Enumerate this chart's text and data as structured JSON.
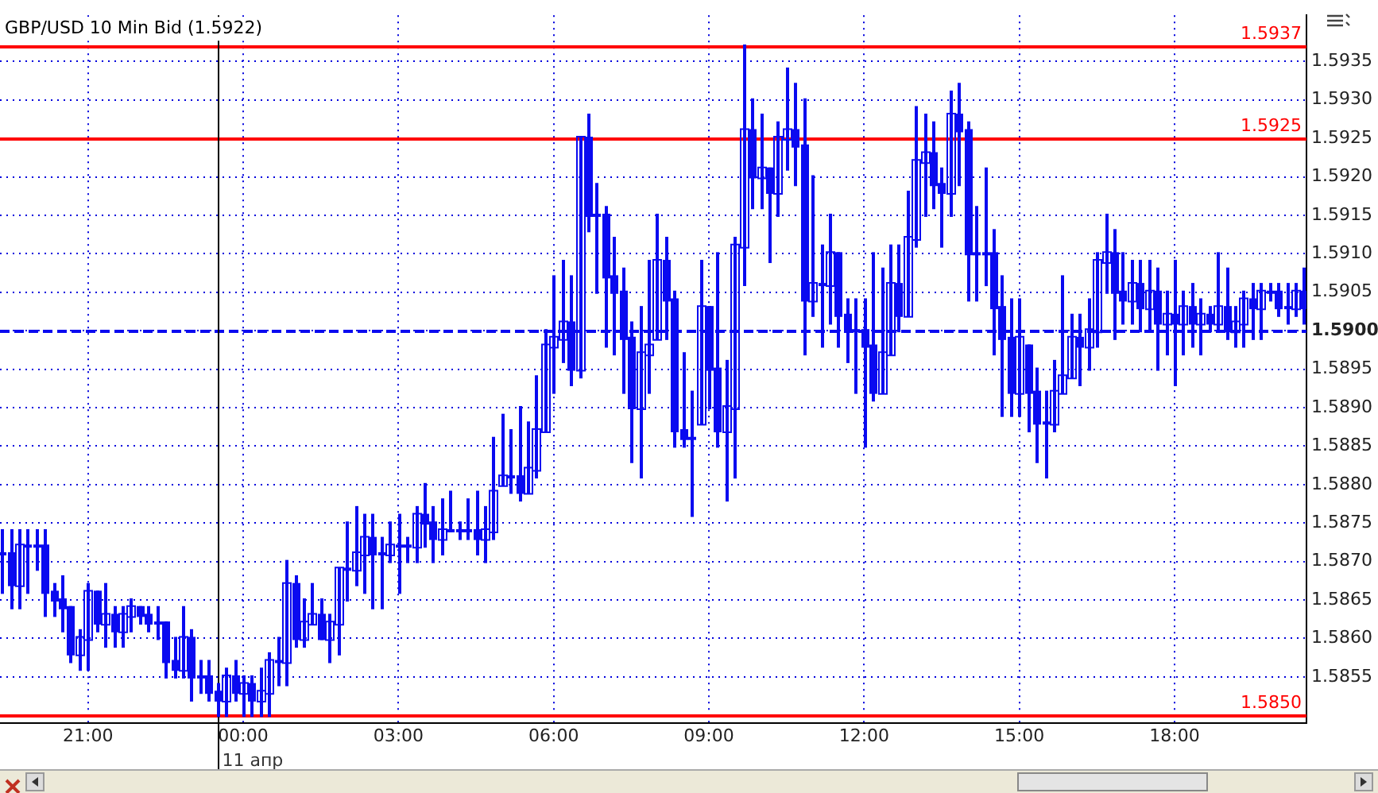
{
  "chart_data": {
    "type": "candlestick",
    "title": "GBP/USD 10 Min Bid (1.5922)",
    "x": [
      "--04-10T19:20",
      "--04-10T19:30",
      "--04-10T19:40",
      "--04-10T19:50",
      "--04-10T20:00",
      "--04-10T20:10",
      "--04-10T20:20",
      "--04-10T20:30",
      "--04-10T20:40",
      "--04-10T20:50",
      "--04-10T21:00",
      "--04-10T21:10",
      "--04-10T21:20",
      "--04-10T21:30",
      "--04-10T21:40",
      "--04-10T21:50",
      "--04-10T22:00",
      "--04-10T22:10",
      "--04-10T22:20",
      "--04-10T22:30",
      "--04-10T22:40",
      "--04-10T22:50",
      "--04-10T23:00",
      "--04-10T23:10",
      "--04-10T23:20",
      "--04-10T23:30",
      "--04-10T23:40",
      "--04-10T23:50",
      "--04-11T00:00",
      "--04-11T00:10",
      "--04-11T00:20",
      "--04-11T00:30",
      "--04-11T00:40",
      "--04-11T00:50",
      "--04-11T01:00",
      "--04-11T01:10",
      "--04-11T01:20",
      "--04-11T01:30",
      "--04-11T01:40",
      "--04-11T01:50",
      "--04-11T02:00",
      "--04-11T02:10",
      "--04-11T02:20",
      "--04-11T02:30",
      "--04-11T02:40",
      "--04-11T02:50",
      "--04-11T03:00",
      "--04-11T03:10",
      "--04-11T03:20",
      "--04-11T03:30",
      "--04-11T03:40",
      "--04-11T03:50",
      "--04-11T04:00",
      "--04-11T04:10",
      "--04-11T04:20",
      "--04-11T04:30",
      "--04-11T04:40",
      "--04-11T04:50",
      "--04-11T05:00",
      "--04-11T05:10",
      "--04-11T05:20",
      "--04-11T05:30",
      "--04-11T05:40",
      "--04-11T05:50",
      "--04-11T06:00",
      "--04-11T06:10",
      "--04-11T06:20",
      "--04-11T06:30",
      "--04-11T06:40",
      "--04-11T06:50",
      "--04-11T07:00",
      "--04-11T07:10",
      "--04-11T07:20",
      "--04-11T07:30",
      "--04-11T07:40",
      "--04-11T07:50",
      "--04-11T08:00",
      "--04-11T08:10",
      "--04-11T08:20",
      "--04-11T08:30",
      "--04-11T08:40",
      "--04-11T08:50",
      "--04-11T09:00",
      "--04-11T09:10",
      "--04-11T09:20",
      "--04-11T09:30",
      "--04-11T09:40",
      "--04-11T09:50",
      "--04-11T10:00",
      "--04-11T10:10",
      "--04-11T10:20",
      "--04-11T10:30",
      "--04-11T10:40",
      "--04-11T10:50",
      "--04-11T11:00",
      "--04-11T11:10",
      "--04-11T11:20",
      "--04-11T11:30",
      "--04-11T11:40",
      "--04-11T11:50",
      "--04-11T12:00",
      "--04-11T12:10",
      "--04-11T12:20",
      "--04-11T12:30",
      "--04-11T12:40",
      "--04-11T12:50",
      "--04-11T13:00",
      "--04-11T13:10",
      "--04-11T13:20",
      "--04-11T13:30",
      "--04-11T13:40",
      "--04-11T13:50",
      "--04-11T14:00",
      "--04-11T14:10",
      "--04-11T14:20",
      "--04-11T14:30",
      "--04-11T14:40",
      "--04-11T14:50",
      "--04-11T15:00",
      "--04-11T15:10",
      "--04-11T15:20",
      "--04-11T15:30",
      "--04-11T15:40",
      "--04-11T15:50",
      "--04-11T16:00",
      "--04-11T16:10",
      "--04-11T16:20",
      "--04-11T16:30",
      "--04-11T16:40",
      "--04-11T16:50",
      "--04-11T17:00",
      "--04-11T17:10",
      "--04-11T17:20",
      "--04-11T17:30",
      "--04-11T17:40",
      "--04-11T17:50",
      "--04-11T18:00",
      "--04-11T18:10",
      "--04-11T18:20",
      "--04-11T18:30",
      "--04-11T18:40",
      "--04-11T18:50",
      "--04-11T19:00",
      "--04-11T19:10",
      "--04-11T19:20",
      "--04-11T19:30",
      "--04-11T19:40",
      "--04-11T19:50",
      "--04-11T20:00",
      "--04-11T20:10",
      "--04-11T20:20",
      "--04-11T20:30"
    ],
    "ohlc": [
      [
        1.5871,
        1.5874,
        1.5866,
        1.5871
      ],
      [
        1.5871,
        1.5874,
        1.5864,
        1.5867
      ],
      [
        1.5867,
        1.5874,
        1.5864,
        1.5872
      ],
      [
        1.5872,
        1.5874,
        1.5866,
        1.5872
      ],
      [
        1.5872,
        1.5874,
        1.5869,
        1.5872
      ],
      [
        1.5872,
        1.5874,
        1.5863,
        1.5866
      ],
      [
        1.5866,
        1.5867,
        1.5863,
        1.5865
      ],
      [
        1.5865,
        1.5868,
        1.5861,
        1.5864
      ],
      [
        1.5864,
        1.5864,
        1.5857,
        1.5858
      ],
      [
        1.5858,
        1.5861,
        1.5856,
        1.586
      ],
      [
        1.586,
        1.5867,
        1.5856,
        1.5866
      ],
      [
        1.5866,
        1.5866,
        1.5861,
        1.5862
      ],
      [
        1.5862,
        1.5867,
        1.5859,
        1.5863
      ],
      [
        1.5863,
        1.5864,
        1.5859,
        1.5861
      ],
      [
        1.5861,
        1.5864,
        1.5859,
        1.5863
      ],
      [
        1.5863,
        1.5865,
        1.5861,
        1.5864
      ],
      [
        1.5864,
        1.5864,
        1.5862,
        1.5863
      ],
      [
        1.5863,
        1.5864,
        1.5861,
        1.5862
      ],
      [
        1.5862,
        1.5864,
        1.586,
        1.5862
      ],
      [
        1.5862,
        1.5862,
        1.5855,
        1.5857
      ],
      [
        1.5857,
        1.586,
        1.5855,
        1.5856
      ],
      [
        1.5856,
        1.5864,
        1.5855,
        1.586
      ],
      [
        1.586,
        1.5861,
        1.5852,
        1.5855
      ],
      [
        1.5855,
        1.5857,
        1.5853,
        1.5855
      ],
      [
        1.5855,
        1.5857,
        1.5852,
        1.5853
      ],
      [
        1.5853,
        1.5854,
        1.585,
        1.5852
      ],
      [
        1.5852,
        1.5856,
        1.585,
        1.5855
      ],
      [
        1.5855,
        1.5857,
        1.5852,
        1.5853
      ],
      [
        1.5853,
        1.5855,
        1.585,
        1.5854
      ],
      [
        1.5854,
        1.5855,
        1.585,
        1.5852
      ],
      [
        1.5852,
        1.5856,
        1.585,
        1.5853
      ],
      [
        1.5853,
        1.5858,
        1.585,
        1.5857
      ],
      [
        1.5857,
        1.586,
        1.5854,
        1.5857
      ],
      [
        1.5857,
        1.587,
        1.5854,
        1.5867
      ],
      [
        1.5867,
        1.5868,
        1.5859,
        1.586
      ],
      [
        1.586,
        1.5865,
        1.5859,
        1.5862
      ],
      [
        1.5862,
        1.5867,
        1.5862,
        1.5863
      ],
      [
        1.5863,
        1.5865,
        1.586,
        1.586
      ],
      [
        1.586,
        1.5863,
        1.5857,
        1.5862
      ],
      [
        1.5862,
        1.5869,
        1.5858,
        1.5869
      ],
      [
        1.5869,
        1.5875,
        1.5865,
        1.5869
      ],
      [
        1.5869,
        1.5877,
        1.5867,
        1.5871
      ],
      [
        1.5871,
        1.5876,
        1.5866,
        1.5873
      ],
      [
        1.5873,
        1.5876,
        1.5864,
        1.5871
      ],
      [
        1.5871,
        1.5873,
        1.5864,
        1.5871
      ],
      [
        1.5871,
        1.5875,
        1.587,
        1.5872
      ],
      [
        1.5872,
        1.5876,
        1.5866,
        1.5872
      ],
      [
        1.5872,
        1.5873,
        1.587,
        1.5872
      ],
      [
        1.5872,
        1.5877,
        1.587,
        1.5876
      ],
      [
        1.5876,
        1.588,
        1.5872,
        1.5875
      ],
      [
        1.5875,
        1.5877,
        1.587,
        1.5873
      ],
      [
        1.5873,
        1.5878,
        1.5871,
        1.5874
      ],
      [
        1.5874,
        1.5879,
        1.5874,
        1.5874
      ],
      [
        1.5874,
        1.5875,
        1.5873,
        1.5874
      ],
      [
        1.5874,
        1.5878,
        1.5873,
        1.5874
      ],
      [
        1.5874,
        1.5879,
        1.5871,
        1.5873
      ],
      [
        1.5873,
        1.5877,
        1.587,
        1.5874
      ],
      [
        1.5874,
        1.5886,
        1.5873,
        1.5879
      ],
      [
        1.588,
        1.5889,
        1.588,
        1.5881
      ],
      [
        1.5881,
        1.5887,
        1.5879,
        1.5881
      ],
      [
        1.5881,
        1.589,
        1.5878,
        1.5879
      ],
      [
        1.5879,
        1.5888,
        1.5879,
        1.5882
      ],
      [
        1.5882,
        1.5894,
        1.5881,
        1.5887
      ],
      [
        1.5887,
        1.59,
        1.5887,
        1.5898
      ],
      [
        1.5898,
        1.5907,
        1.5892,
        1.5899
      ],
      [
        1.5899,
        1.5909,
        1.5896,
        1.5901
      ],
      [
        1.5901,
        1.5907,
        1.5893,
        1.5895
      ],
      [
        1.5895,
        1.5925,
        1.5894,
        1.5925
      ],
      [
        1.5925,
        1.5928,
        1.5913,
        1.5915
      ],
      [
        1.5915,
        1.5919,
        1.5905,
        1.5915
      ],
      [
        1.5915,
        1.5916,
        1.5898,
        1.5907
      ],
      [
        1.5907,
        1.5912,
        1.5897,
        1.5905
      ],
      [
        1.5905,
        1.5908,
        1.5892,
        1.5899
      ],
      [
        1.5899,
        1.5901,
        1.5883,
        1.589
      ],
      [
        1.589,
        1.5903,
        1.5881,
        1.5897
      ],
      [
        1.5897,
        1.5909,
        1.5892,
        1.5898
      ],
      [
        1.5899,
        1.5915,
        1.5899,
        1.5909
      ],
      [
        1.5909,
        1.5912,
        1.5899,
        1.5904
      ],
      [
        1.5904,
        1.5905,
        1.5885,
        1.5887
      ],
      [
        1.5887,
        1.5897,
        1.5885,
        1.5886
      ],
      [
        1.5886,
        1.5892,
        1.5876,
        1.5886
      ],
      [
        1.5888,
        1.5909,
        1.5888,
        1.5903
      ],
      [
        1.5903,
        1.5903,
        1.589,
        1.5895
      ],
      [
        1.5895,
        1.591,
        1.5885,
        1.5887
      ],
      [
        1.5887,
        1.5896,
        1.5878,
        1.589
      ],
      [
        1.589,
        1.5912,
        1.5881,
        1.5911
      ],
      [
        1.5911,
        1.5937,
        1.5906,
        1.5926
      ],
      [
        1.5926,
        1.593,
        1.5916,
        1.592
      ],
      [
        1.592,
        1.5928,
        1.5916,
        1.5921
      ],
      [
        1.5921,
        1.5921,
        1.5909,
        1.5918
      ],
      [
        1.5918,
        1.5927,
        1.5915,
        1.5925
      ],
      [
        1.5925,
        1.5934,
        1.5921,
        1.5926
      ],
      [
        1.5926,
        1.5932,
        1.5919,
        1.5924
      ],
      [
        1.5924,
        1.593,
        1.5897,
        1.5904
      ],
      [
        1.5904,
        1.592,
        1.5902,
        1.5906
      ],
      [
        1.5906,
        1.5911,
        1.5898,
        1.5906
      ],
      [
        1.5906,
        1.5915,
        1.5901,
        1.591
      ],
      [
        1.591,
        1.591,
        1.5898,
        1.5902
      ],
      [
        1.5902,
        1.5904,
        1.5896,
        1.59
      ],
      [
        1.59,
        1.5904,
        1.5892,
        1.59
      ],
      [
        1.59,
        1.5904,
        1.5885,
        1.5898
      ],
      [
        1.5898,
        1.591,
        1.5891,
        1.5892
      ],
      [
        1.5892,
        1.5908,
        1.5892,
        1.5897
      ],
      [
        1.5897,
        1.5911,
        1.5897,
        1.5906
      ],
      [
        1.5906,
        1.5911,
        1.59,
        1.5902
      ],
      [
        1.5902,
        1.5918,
        1.5902,
        1.5912
      ],
      [
        1.5912,
        1.5929,
        1.5911,
        1.5922
      ],
      [
        1.5922,
        1.5928,
        1.5915,
        1.5923
      ],
      [
        1.5923,
        1.5927,
        1.5916,
        1.5919
      ],
      [
        1.5919,
        1.5921,
        1.5911,
        1.5918
      ],
      [
        1.5918,
        1.5931,
        1.5915,
        1.5928
      ],
      [
        1.5928,
        1.5932,
        1.5919,
        1.5926
      ],
      [
        1.5926,
        1.5927,
        1.5904,
        1.591
      ],
      [
        1.591,
        1.5916,
        1.5904,
        1.591
      ],
      [
        1.591,
        1.5921,
        1.5906,
        1.591
      ],
      [
        1.591,
        1.5913,
        1.5897,
        1.5903
      ],
      [
        1.5903,
        1.5907,
        1.5889,
        1.5899
      ],
      [
        1.5899,
        1.5904,
        1.5889,
        1.5892
      ],
      [
        1.5892,
        1.5904,
        1.5889,
        1.5899
      ],
      [
        1.5898,
        1.5898,
        1.5887,
        1.5892
      ],
      [
        1.5892,
        1.5895,
        1.5883,
        1.5888
      ],
      [
        1.5888,
        1.5892,
        1.5881,
        1.5888
      ],
      [
        1.5888,
        1.5896,
        1.5887,
        1.5892
      ],
      [
        1.5892,
        1.5907,
        1.5892,
        1.5894
      ],
      [
        1.5894,
        1.5902,
        1.5894,
        1.5899
      ],
      [
        1.5899,
        1.5902,
        1.5893,
        1.5898
      ],
      [
        1.5898,
        1.5904,
        1.5895,
        1.59
      ],
      [
        1.59,
        1.591,
        1.5898,
        1.5909
      ],
      [
        1.5909,
        1.5915,
        1.5905,
        1.591
      ],
      [
        1.591,
        1.5913,
        1.5899,
        1.5905
      ],
      [
        1.5905,
        1.591,
        1.5901,
        1.5904
      ],
      [
        1.5904,
        1.5909,
        1.5901,
        1.5906
      ],
      [
        1.5906,
        1.5909,
        1.59,
        1.5903
      ],
      [
        1.5903,
        1.5909,
        1.59,
        1.5905
      ],
      [
        1.5905,
        1.5908,
        1.5895,
        1.5901
      ],
      [
        1.5901,
        1.5905,
        1.5897,
        1.5902
      ],
      [
        1.5902,
        1.5909,
        1.5893,
        1.5901
      ],
      [
        1.5901,
        1.5905,
        1.5897,
        1.5903
      ],
      [
        1.5903,
        1.5906,
        1.5898,
        1.5901
      ],
      [
        1.5901,
        1.5904,
        1.5897,
        1.5902
      ],
      [
        1.5902,
        1.5903,
        1.59,
        1.5901
      ],
      [
        1.5901,
        1.591,
        1.59,
        1.5903
      ],
      [
        1.5903,
        1.5908,
        1.5899,
        1.59
      ],
      [
        1.59,
        1.5903,
        1.5898,
        1.5901
      ],
      [
        1.5901,
        1.5905,
        1.5898,
        1.5904
      ],
      [
        1.5904,
        1.5906,
        1.5899,
        1.5903
      ],
      [
        1.5903,
        1.5906,
        1.5899,
        1.5905
      ],
      [
        1.5905,
        1.5906,
        1.5904,
        1.5905
      ],
      [
        1.5905,
        1.5906,
        1.5902,
        1.5903
      ],
      [
        1.5903,
        1.5906,
        1.5901,
        1.5903
      ],
      [
        1.5903,
        1.5906,
        1.5902,
        1.5905
      ],
      [
        1.5905,
        1.5908,
        1.5901,
        1.5903
      ]
    ],
    "color": "#0a0af0",
    "xlim": [
      "--04-10T19:18",
      "--04-11T20:33"
    ],
    "xticks": [
      {
        "value": "--04-10T21:00",
        "label": "21:00"
      },
      {
        "value": "--04-11T00:00",
        "label": "00:00"
      },
      {
        "value": "--04-11T03:00",
        "label": "03:00"
      },
      {
        "value": "--04-11T06:00",
        "label": "06:00"
      },
      {
        "value": "--04-11T09:00",
        "label": "09:00"
      },
      {
        "value": "--04-11T12:00",
        "label": "12:00"
      },
      {
        "value": "--04-11T15:00",
        "label": "15:00"
      },
      {
        "value": "--04-11T18:00",
        "label": "18:00"
      }
    ],
    "ylim": [
      1.5849,
      1.5941
    ],
    "yticks": [
      1.5855,
      {
        "value": 1.586,
        "label": "1.5860"
      },
      1.5865,
      {
        "value": 1.587,
        "label": "1.5870"
      },
      1.5875,
      {
        "value": 1.588,
        "label": "1.5880"
      },
      1.5885,
      {
        "value": 1.589,
        "label": "1.5890"
      },
      1.5895,
      {
        "value": 1.59,
        "label": "1.5900"
      },
      1.5905,
      {
        "value": 1.591,
        "label": "1.5910"
      },
      1.5915,
      {
        "value": 1.592,
        "label": "1.5920"
      },
      1.5925,
      {
        "value": 1.593,
        "label": "1.5930"
      },
      1.5935
    ],
    "ref_lines": [
      {
        "axis": "y",
        "value": 1.5937,
        "label": "1.5937",
        "color": "#ff0000"
      },
      {
        "axis": "y",
        "value": 1.5925,
        "label": "1.5925",
        "color": "#ff0000"
      },
      {
        "axis": "y",
        "value": 1.585,
        "label": "1.5850",
        "color": "#ff0000"
      },
      {
        "axis": "y",
        "value": 1.59,
        "color": "#0a0af0",
        "line_style": "dashed"
      },
      {
        "axis": "x",
        "value": "--04-10T23:30",
        "label": "11 апр",
        "color": "#000000"
      }
    ],
    "grid": true,
    "legend": false
  }
}
